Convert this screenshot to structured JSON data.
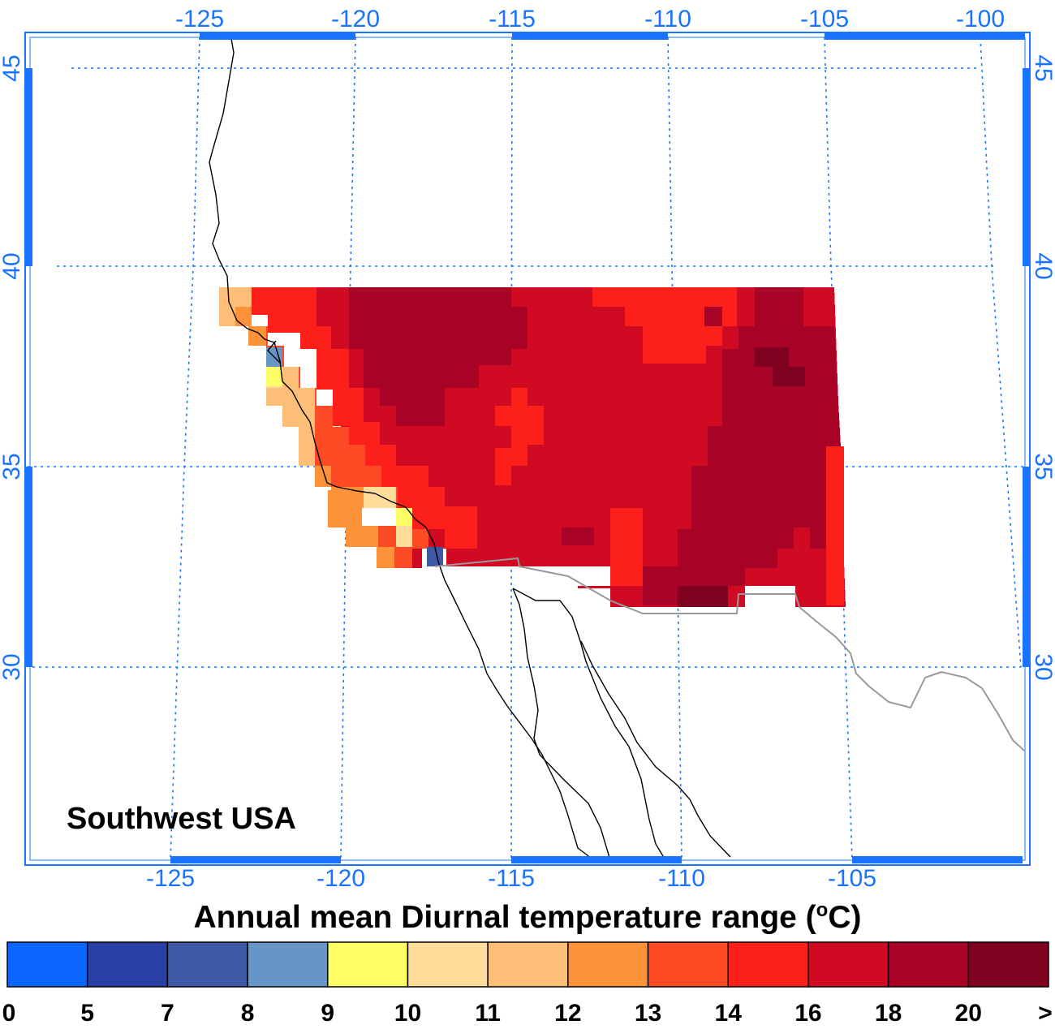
{
  "map": {
    "region_label": "Southwest USA",
    "lon_ticks_top": [
      "-125",
      "-120",
      "-115",
      "-110",
      "-105",
      "-100"
    ],
    "lon_ticks_bottom": [
      "-125",
      "-120",
      "-115",
      "-110",
      "-105"
    ],
    "lat_ticks": [
      "45",
      "40",
      "35",
      "30"
    ],
    "colors": {
      "axis": "#1a73ff",
      "grid": "#1a73ff",
      "coastline": "#000000",
      "border": "#999999"
    }
  },
  "colorbar": {
    "title_prefix": "Annual mean Diurnal temperature range (",
    "title_sup": "o",
    "title_suffix": "C)",
    "colors": [
      "#0b66ff",
      "#2a3fa6",
      "#3e5aa6",
      "#6795c5",
      "#ffff66",
      "#fedc9a",
      "#fdbe78",
      "#fd9239",
      "#fc4b25",
      "#fd1f1a",
      "#d10a24",
      "#a80226",
      "#800020"
    ],
    "tick_labels": [
      "0",
      "5",
      "7",
      "8",
      "9",
      "10",
      "11",
      "12",
      "13",
      "14",
      "16",
      "18",
      "20",
      ">"
    ]
  }
}
